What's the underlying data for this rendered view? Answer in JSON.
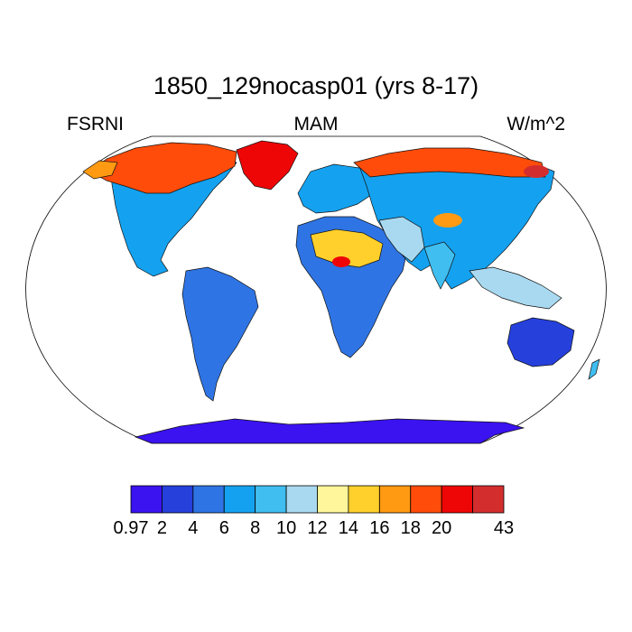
{
  "figure": {
    "title": "1850_129nocasp01 (yrs 8-17)",
    "left_label": "FSRNI",
    "center_label": "MAM",
    "right_label": "W/m^2"
  },
  "colorbar": {
    "colors": [
      "#3b12f0",
      "#2640dc",
      "#2f74e4",
      "#14a2f0",
      "#40bef0",
      "#a9d9f0",
      "#fff59a",
      "#ffd02c",
      "#ff9a12",
      "#ff4c0a",
      "#ee0606",
      "#d32d2d"
    ],
    "tick_labels": [
      "0.97",
      "2",
      "4",
      "6",
      "8",
      "10",
      "12",
      "14",
      "16",
      "18",
      "20",
      "43"
    ]
  }
}
